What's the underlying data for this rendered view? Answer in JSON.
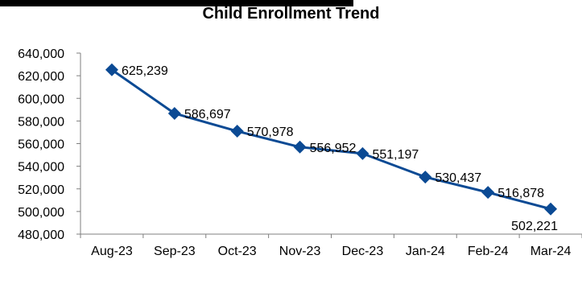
{
  "chart_data": {
    "type": "line",
    "title": "Child Enrollment Trend",
    "xlabel": "",
    "ylabel": "",
    "categories": [
      "Aug-23",
      "Sep-23",
      "Oct-23",
      "Nov-23",
      "Dec-23",
      "Jan-24",
      "Feb-24",
      "Mar-24"
    ],
    "series": [
      {
        "values": [
          625239,
          586697,
          570978,
          556952,
          551197,
          530437,
          516878,
          502221
        ]
      }
    ],
    "data_labels": [
      "625,239",
      "586,697",
      "570,978",
      "556,952",
      "551,197",
      "530,437",
      "516,878",
      "502,221"
    ],
    "ylim": [
      480000,
      640000
    ],
    "y_ticks": [
      480000,
      500000,
      520000,
      540000,
      560000,
      580000,
      600000,
      620000,
      640000
    ],
    "y_tick_labels": [
      "480,000",
      "500,000",
      "520,000",
      "540,000",
      "560,000",
      "580,000",
      "600,000",
      "620,000",
      "640,000"
    ],
    "grid": false,
    "legend": "none",
    "marker": "diamond",
    "series_color": "#0B4A94"
  }
}
